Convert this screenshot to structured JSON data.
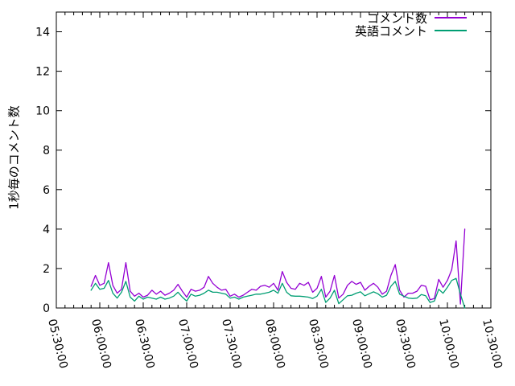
{
  "figure": {
    "background": "#ffffff",
    "border_color": "#000000"
  },
  "chart_data": {
    "type": "line",
    "title": "",
    "xlabel": "",
    "ylabel": "1秒毎のコメント数",
    "grid": false,
    "legend_position": "top-right-inside",
    "xlim_time": [
      "05:30:00",
      "10:30:00"
    ],
    "x_tick_labels": [
      "05:30:00",
      "06:00:00",
      "06:30:00",
      "07:00:00",
      "07:30:00",
      "08:00:00",
      "08:30:00",
      "09:00:00",
      "09:30:00",
      "10:00:00",
      "10:30:00"
    ],
    "x_minor_tick_minutes": 6,
    "ylim": [
      0,
      15
    ],
    "yticks": [
      0,
      2,
      4,
      6,
      8,
      10,
      12,
      14
    ],
    "series": [
      {
        "name": "コメント数",
        "color": "#9400d3",
        "points": [
          [
            "05:54",
            1.1
          ],
          [
            "05:57",
            1.65
          ],
          [
            "06:00",
            1.15
          ],
          [
            "06:03",
            1.25
          ],
          [
            "06:06",
            2.3
          ],
          [
            "06:09",
            1.15
          ],
          [
            "06:12",
            0.75
          ],
          [
            "06:15",
            0.95
          ],
          [
            "06:18",
            2.3
          ],
          [
            "06:21",
            0.85
          ],
          [
            "06:24",
            0.6
          ],
          [
            "06:27",
            0.75
          ],
          [
            "06:30",
            0.55
          ],
          [
            "06:33",
            0.65
          ],
          [
            "06:36",
            0.9
          ],
          [
            "06:39",
            0.7
          ],
          [
            "06:42",
            0.85
          ],
          [
            "06:45",
            0.65
          ],
          [
            "06:48",
            0.75
          ],
          [
            "06:51",
            0.9
          ],
          [
            "06:54",
            1.2
          ],
          [
            "06:57",
            0.85
          ],
          [
            "07:00",
            0.55
          ],
          [
            "07:03",
            0.95
          ],
          [
            "07:06",
            0.85
          ],
          [
            "07:09",
            0.9
          ],
          [
            "07:12",
            1.05
          ],
          [
            "07:15",
            1.6
          ],
          [
            "07:18",
            1.25
          ],
          [
            "07:21",
            1.05
          ],
          [
            "07:24",
            0.9
          ],
          [
            "07:27",
            0.95
          ],
          [
            "07:30",
            0.6
          ],
          [
            "07:33",
            0.7
          ],
          [
            "07:36",
            0.55
          ],
          [
            "07:39",
            0.65
          ],
          [
            "07:42",
            0.8
          ],
          [
            "07:45",
            0.95
          ],
          [
            "07:48",
            0.9
          ],
          [
            "07:51",
            1.1
          ],
          [
            "07:54",
            1.15
          ],
          [
            "07:57",
            1.05
          ],
          [
            "08:00",
            1.25
          ],
          [
            "08:03",
            0.9
          ],
          [
            "08:06",
            1.85
          ],
          [
            "08:09",
            1.3
          ],
          [
            "08:12",
            1.0
          ],
          [
            "08:15",
            0.95
          ],
          [
            "08:18",
            1.25
          ],
          [
            "08:21",
            1.15
          ],
          [
            "08:24",
            1.3
          ],
          [
            "08:27",
            0.8
          ],
          [
            "08:30",
            1.0
          ],
          [
            "08:33",
            1.6
          ],
          [
            "08:36",
            0.55
          ],
          [
            "08:39",
            0.85
          ],
          [
            "08:42",
            1.65
          ],
          [
            "08:45",
            0.5
          ],
          [
            "08:48",
            0.7
          ],
          [
            "08:51",
            1.15
          ],
          [
            "08:54",
            1.35
          ],
          [
            "08:57",
            1.2
          ],
          [
            "09:00",
            1.3
          ],
          [
            "09:03",
            0.9
          ],
          [
            "09:06",
            1.1
          ],
          [
            "09:09",
            1.25
          ],
          [
            "09:12",
            1.05
          ],
          [
            "09:15",
            0.7
          ],
          [
            "09:18",
            0.85
          ],
          [
            "09:21",
            1.65
          ],
          [
            "09:24",
            2.2
          ],
          [
            "09:27",
            0.9
          ],
          [
            "09:30",
            0.55
          ],
          [
            "09:33",
            0.75
          ],
          [
            "09:36",
            0.75
          ],
          [
            "09:39",
            0.85
          ],
          [
            "09:42",
            1.15
          ],
          [
            "09:45",
            1.1
          ],
          [
            "09:48",
            0.42
          ],
          [
            "09:51",
            0.48
          ],
          [
            "09:54",
            1.45
          ],
          [
            "09:57",
            1.05
          ],
          [
            "10:00",
            1.4
          ],
          [
            "10:03",
            1.95
          ],
          [
            "10:06",
            3.4
          ],
          [
            "10:09",
            0.2
          ],
          [
            "10:12",
            4.0
          ]
        ]
      },
      {
        "name": "英語コメント",
        "color": "#009e73",
        "points": [
          [
            "05:54",
            0.9
          ],
          [
            "05:57",
            1.25
          ],
          [
            "06:00",
            0.95
          ],
          [
            "06:03",
            1.0
          ],
          [
            "06:06",
            1.4
          ],
          [
            "06:09",
            0.75
          ],
          [
            "06:12",
            0.5
          ],
          [
            "06:15",
            0.8
          ],
          [
            "06:18",
            1.35
          ],
          [
            "06:21",
            0.55
          ],
          [
            "06:24",
            0.35
          ],
          [
            "06:27",
            0.6
          ],
          [
            "06:30",
            0.45
          ],
          [
            "06:33",
            0.55
          ],
          [
            "06:36",
            0.5
          ],
          [
            "06:39",
            0.45
          ],
          [
            "06:42",
            0.55
          ],
          [
            "06:45",
            0.45
          ],
          [
            "06:48",
            0.5
          ],
          [
            "06:51",
            0.6
          ],
          [
            "06:54",
            0.8
          ],
          [
            "06:57",
            0.55
          ],
          [
            "07:00",
            0.35
          ],
          [
            "07:03",
            0.7
          ],
          [
            "07:06",
            0.6
          ],
          [
            "07:09",
            0.65
          ],
          [
            "07:12",
            0.75
          ],
          [
            "07:15",
            0.9
          ],
          [
            "07:18",
            0.8
          ],
          [
            "07:21",
            0.8
          ],
          [
            "07:24",
            0.75
          ],
          [
            "07:27",
            0.7
          ],
          [
            "07:30",
            0.5
          ],
          [
            "07:33",
            0.55
          ],
          [
            "07:36",
            0.45
          ],
          [
            "07:39",
            0.55
          ],
          [
            "07:42",
            0.6
          ],
          [
            "07:45",
            0.65
          ],
          [
            "07:48",
            0.7
          ],
          [
            "07:51",
            0.7
          ],
          [
            "07:54",
            0.75
          ],
          [
            "07:57",
            0.8
          ],
          [
            "08:00",
            0.9
          ],
          [
            "08:03",
            0.75
          ],
          [
            "08:06",
            1.25
          ],
          [
            "08:09",
            0.8
          ],
          [
            "08:12",
            0.62
          ],
          [
            "08:15",
            0.6
          ],
          [
            "08:18",
            0.6
          ],
          [
            "08:21",
            0.58
          ],
          [
            "08:24",
            0.55
          ],
          [
            "08:27",
            0.48
          ],
          [
            "08:30",
            0.6
          ],
          [
            "08:33",
            0.95
          ],
          [
            "08:36",
            0.28
          ],
          [
            "08:39",
            0.5
          ],
          [
            "08:42",
            0.9
          ],
          [
            "08:45",
            0.22
          ],
          [
            "08:48",
            0.42
          ],
          [
            "08:51",
            0.62
          ],
          [
            "08:54",
            0.65
          ],
          [
            "08:57",
            0.75
          ],
          [
            "09:00",
            0.82
          ],
          [
            "09:03",
            0.62
          ],
          [
            "09:06",
            0.72
          ],
          [
            "09:09",
            0.82
          ],
          [
            "09:12",
            0.72
          ],
          [
            "09:15",
            0.55
          ],
          [
            "09:18",
            0.65
          ],
          [
            "09:21",
            1.1
          ],
          [
            "09:24",
            1.35
          ],
          [
            "09:27",
            0.7
          ],
          [
            "09:30",
            0.6
          ],
          [
            "09:33",
            0.5
          ],
          [
            "09:36",
            0.48
          ],
          [
            "09:39",
            0.5
          ],
          [
            "09:42",
            0.68
          ],
          [
            "09:45",
            0.62
          ],
          [
            "09:48",
            0.28
          ],
          [
            "09:51",
            0.35
          ],
          [
            "09:54",
            0.95
          ],
          [
            "09:57",
            0.75
          ],
          [
            "10:00",
            1.05
          ],
          [
            "10:03",
            1.4
          ],
          [
            "10:06",
            1.5
          ],
          [
            "10:09",
            0.7
          ],
          [
            "10:12",
            0.0
          ]
        ]
      }
    ]
  }
}
